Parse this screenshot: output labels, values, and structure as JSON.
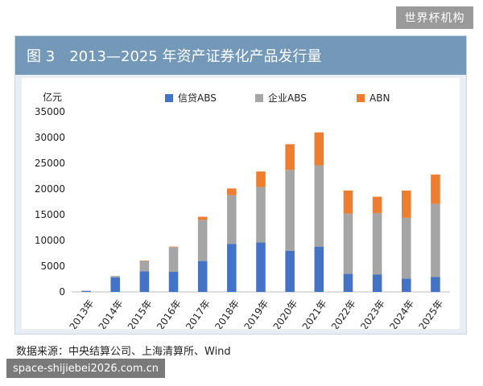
{
  "brand": "世界杯机构",
  "header": {
    "figure_label": "图 3",
    "title": "2013—2025 年资产证券化产品发行量"
  },
  "chart_data": {
    "type": "bar",
    "stacked": true,
    "title": "2013—2025 年资产证券化产品发行量",
    "ylabel": "亿元",
    "xlabel": "",
    "ylim": [
      0,
      35000
    ],
    "yticks": [
      0,
      5000,
      10000,
      15000,
      20000,
      25000,
      30000,
      35000
    ],
    "grid": false,
    "legend": "top",
    "categories": [
      "2013年",
      "2014年",
      "2015年",
      "2016年",
      "2017年",
      "2018年",
      "2019年",
      "2020年",
      "2021年",
      "2022年",
      "2023年",
      "2024年",
      "2025年"
    ],
    "series": [
      {
        "name": "信贷ABS",
        "color": "#4472c4",
        "values": [
          150,
          2800,
          4000,
          3900,
          6000,
          9300,
          9600,
          8000,
          8800,
          3500,
          3400,
          2600,
          2900
        ]
      },
      {
        "name": "企业ABS",
        "color": "#a5a5a5",
        "values": [
          100,
          300,
          2000,
          4800,
          8000,
          9500,
          10800,
          15700,
          15800,
          11700,
          11900,
          11800,
          14200
        ]
      },
      {
        "name": "ABN",
        "color": "#ed7d31",
        "values": [
          0,
          0,
          100,
          100,
          600,
          1300,
          3000,
          5000,
          6400,
          4500,
          3200,
          5300,
          5700
        ]
      }
    ]
  },
  "footer": {
    "source": "数据来源：中央结算公司、上海清算所、Wind"
  },
  "watermark": "space-shijiebei2026.com.cn"
}
